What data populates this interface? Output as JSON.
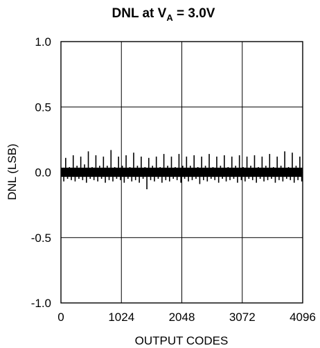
{
  "chart_data": {
    "type": "line",
    "title": {
      "main": "DNL at V",
      "subscript": "A",
      "suffix": " = 3.0V"
    },
    "xlabel": "OUTPUT CODES",
    "ylabel": "DNL (LSB)",
    "xlim": [
      0,
      4096
    ],
    "ylim": [
      -1.0,
      1.0
    ],
    "x_ticks": [
      0,
      1024,
      2048,
      3072,
      4096
    ],
    "x_tick_labels": [
      "0",
      "1024",
      "2048",
      "3072",
      "4096"
    ],
    "y_ticks": [
      1.0,
      0.5,
      0.0,
      -0.5,
      -1.0
    ],
    "y_tick_labels": [
      "1.0",
      "0.5",
      "0.0",
      "-0.5",
      "-1.0"
    ],
    "grid": true,
    "series": [
      {
        "color": "#000000",
        "points": [
          [
            16,
            0.03
          ],
          [
            48,
            -0.07
          ],
          [
            80,
            0.11
          ],
          [
            112,
            -0.05
          ],
          [
            144,
            0.04
          ],
          [
            176,
            -0.06
          ],
          [
            208,
            0.13
          ],
          [
            240,
            -0.07
          ],
          [
            272,
            0.05
          ],
          [
            304,
            -0.05
          ],
          [
            336,
            0.12
          ],
          [
            368,
            -0.06
          ],
          [
            400,
            0.06
          ],
          [
            432,
            -0.08
          ],
          [
            464,
            0.16
          ],
          [
            496,
            -0.05
          ],
          [
            528,
            0.04
          ],
          [
            560,
            -0.06
          ],
          [
            592,
            0.13
          ],
          [
            624,
            -0.07
          ],
          [
            656,
            0.05
          ],
          [
            688,
            -0.05
          ],
          [
            720,
            0.12
          ],
          [
            752,
            -0.08
          ],
          [
            784,
            0.05
          ],
          [
            816,
            -0.06
          ],
          [
            848,
            0.17
          ],
          [
            880,
            -0.07
          ],
          [
            912,
            0.04
          ],
          [
            944,
            -0.05
          ],
          [
            976,
            0.12
          ],
          [
            1008,
            -0.06
          ],
          [
            1040,
            0.05
          ],
          [
            1072,
            -0.08
          ],
          [
            1104,
            0.13
          ],
          [
            1136,
            -0.05
          ],
          [
            1168,
            0.04
          ],
          [
            1200,
            -0.07
          ],
          [
            1232,
            0.15
          ],
          [
            1264,
            -0.06
          ],
          [
            1296,
            0.05
          ],
          [
            1328,
            -0.08
          ],
          [
            1360,
            0.12
          ],
          [
            1392,
            -0.05
          ],
          [
            1424,
            0.04
          ],
          [
            1456,
            -0.13
          ],
          [
            1488,
            0.11
          ],
          [
            1520,
            -0.06
          ],
          [
            1552,
            0.05
          ],
          [
            1584,
            -0.07
          ],
          [
            1616,
            0.12
          ],
          [
            1648,
            -0.05
          ],
          [
            1680,
            0.04
          ],
          [
            1712,
            -0.08
          ],
          [
            1744,
            0.14
          ],
          [
            1776,
            -0.06
          ],
          [
            1808,
            0.05
          ],
          [
            1840,
            -0.07
          ],
          [
            1872,
            0.12
          ],
          [
            1904,
            -0.05
          ],
          [
            1936,
            0.04
          ],
          [
            1968,
            -0.06
          ],
          [
            2000,
            0.14
          ],
          [
            2032,
            -0.08
          ],
          [
            2064,
            0.05
          ],
          [
            2096,
            -0.05
          ],
          [
            2128,
            0.12
          ],
          [
            2160,
            -0.07
          ],
          [
            2192,
            0.05
          ],
          [
            2224,
            -0.06
          ],
          [
            2256,
            0.13
          ],
          [
            2288,
            -0.05
          ],
          [
            2320,
            0.04
          ],
          [
            2352,
            -0.09
          ],
          [
            2384,
            0.12
          ],
          [
            2416,
            -0.06
          ],
          [
            2448,
            0.05
          ],
          [
            2480,
            -0.07
          ],
          [
            2512,
            0.14
          ],
          [
            2544,
            -0.05
          ],
          [
            2576,
            0.04
          ],
          [
            2608,
            -0.06
          ],
          [
            2640,
            0.12
          ],
          [
            2672,
            -0.08
          ],
          [
            2704,
            0.05
          ],
          [
            2736,
            -0.05
          ],
          [
            2768,
            0.13
          ],
          [
            2800,
            -0.07
          ],
          [
            2832,
            0.04
          ],
          [
            2864,
            -0.06
          ],
          [
            2896,
            0.12
          ],
          [
            2928,
            -0.05
          ],
          [
            2960,
            0.05
          ],
          [
            2992,
            -0.08
          ],
          [
            3024,
            0.13
          ],
          [
            3056,
            -0.06
          ],
          [
            3088,
            0.04
          ],
          [
            3120,
            -0.07
          ],
          [
            3152,
            0.12
          ],
          [
            3184,
            -0.05
          ],
          [
            3216,
            0.05
          ],
          [
            3248,
            -0.06
          ],
          [
            3280,
            0.13
          ],
          [
            3312,
            -0.08
          ],
          [
            3344,
            0.04
          ],
          [
            3376,
            -0.05
          ],
          [
            3408,
            0.12
          ],
          [
            3440,
            -0.07
          ],
          [
            3472,
            0.05
          ],
          [
            3504,
            -0.06
          ],
          [
            3536,
            0.14
          ],
          [
            3568,
            -0.05
          ],
          [
            3600,
            0.04
          ],
          [
            3632,
            -0.08
          ],
          [
            3664,
            0.12
          ],
          [
            3696,
            -0.06
          ],
          [
            3728,
            0.05
          ],
          [
            3760,
            -0.07
          ],
          [
            3792,
            0.16
          ],
          [
            3824,
            -0.05
          ],
          [
            3856,
            0.04
          ],
          [
            3888,
            -0.06
          ],
          [
            3920,
            0.15
          ],
          [
            3952,
            -0.08
          ],
          [
            3984,
            0.05
          ],
          [
            4016,
            -0.06
          ],
          [
            4048,
            0.12
          ],
          [
            4080,
            -0.07
          ]
        ]
      }
    ]
  }
}
